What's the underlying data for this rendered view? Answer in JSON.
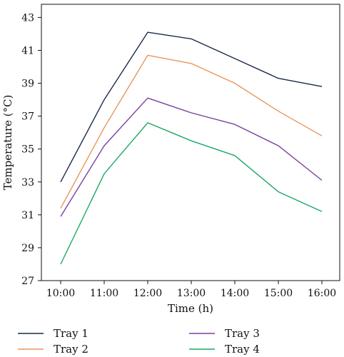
{
  "chart_data": {
    "type": "line",
    "title": "",
    "xlabel": "Time (h)",
    "ylabel": "Temperature (°C)",
    "categories": [
      "10:00",
      "11:00",
      "12:00",
      "13:00",
      "14:00",
      "15:00",
      "16:00"
    ],
    "yticks": [
      27,
      29,
      31,
      33,
      35,
      37,
      39,
      41,
      43
    ],
    "ylim": [
      27,
      43.8
    ],
    "grid": false,
    "legend_position": "bottom",
    "series": [
      {
        "name": "Tray 1",
        "color": "#1b2a4a",
        "values": [
          33.0,
          38.0,
          42.1,
          41.7,
          40.5,
          39.3,
          38.8
        ]
      },
      {
        "name": "Tray 2",
        "color": "#e8955a",
        "values": [
          31.4,
          36.3,
          40.7,
          40.2,
          39.0,
          37.3,
          35.8
        ]
      },
      {
        "name": "Tray 3",
        "color": "#7b3fa0",
        "values": [
          30.9,
          35.2,
          38.1,
          37.2,
          36.5,
          35.2,
          33.1
        ]
      },
      {
        "name": "Tray 4",
        "color": "#1aa865",
        "values": [
          28.0,
          33.5,
          36.6,
          35.5,
          34.6,
          32.4,
          31.2
        ]
      }
    ]
  }
}
